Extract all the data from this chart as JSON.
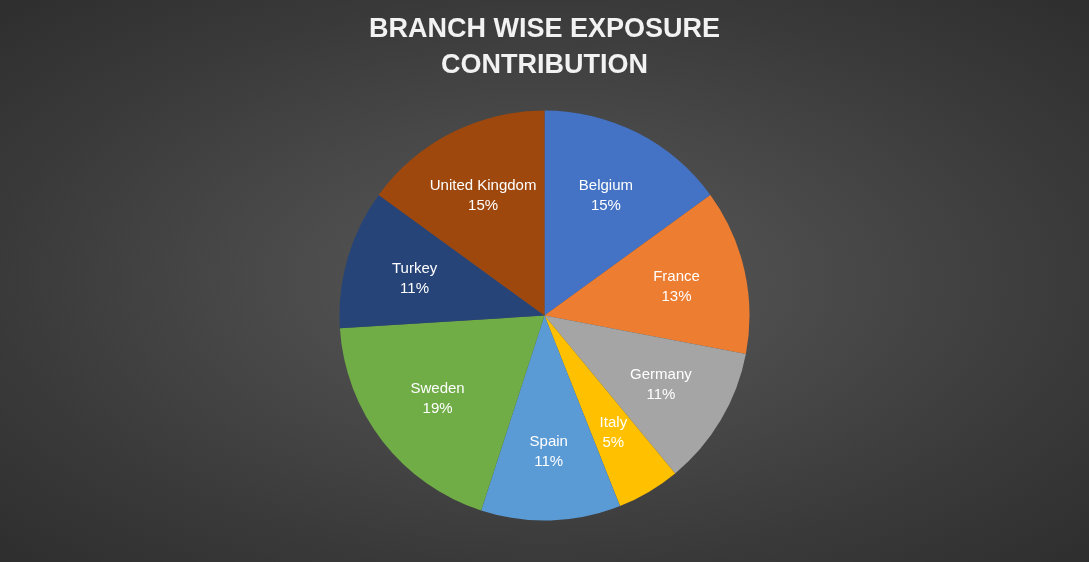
{
  "chart_data": {
    "type": "pie",
    "title": "BRANCH WISE EXPOSURE CONTRIBUTION",
    "categories": [
      "Belgium",
      "France",
      "Germany",
      "Italy",
      "Spain",
      "Sweden",
      "Turkey",
      "United Kingdom"
    ],
    "values": [
      15,
      13,
      11,
      5,
      11,
      19,
      11,
      15
    ],
    "value_labels": [
      "15%",
      "13%",
      "11%",
      "5%",
      "11%",
      "19%",
      "11%",
      "15%"
    ],
    "colors": [
      "#4472c4",
      "#ed7d31",
      "#a5a5a5",
      "#ffc000",
      "#5b9bd5",
      "#70ad47",
      "#264478",
      "#9e480e"
    ],
    "legend": false
  }
}
